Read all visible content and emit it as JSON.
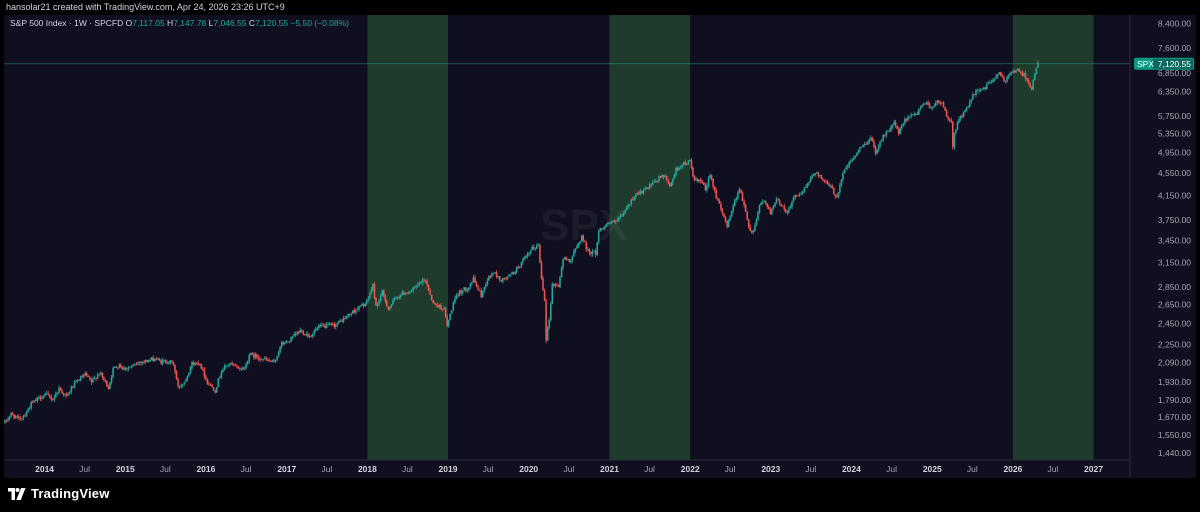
{
  "header": {
    "credit": "hansolar21 created with TradingView.com, Apr 24, 2026 23:26 UTC+9"
  },
  "footer": {
    "brand": "TradingView",
    "logo_icon": "tradingview-logo-icon"
  },
  "chart_data": {
    "type": "candlestick",
    "legend": {
      "symbol": "S&P 500 Index · 1W · SPCFD",
      "o_label": "O",
      "o": "7,117.05",
      "h_label": "H",
      "h": "7,147.78",
      "l_label": "L",
      "l": "7,046.55",
      "c_label": "C",
      "c": "7,120.55",
      "change": "−5.50 (−0.08%)"
    },
    "last_price": {
      "ticker": "SPX",
      "value": "7,120.55",
      "numeric": 7120.55
    },
    "watermark": "SPX",
    "y_scale": "log",
    "y_range": [
      1400,
      8700
    ],
    "y_ticks": [
      8400,
      7600,
      6850,
      6350,
      5750,
      5350,
      4950,
      4550,
      4150,
      3750,
      3450,
      3150,
      2850,
      2650,
      2450,
      2250,
      2090,
      1930,
      1790,
      1670,
      1550,
      1440
    ],
    "y_tick_labels": [
      "8,400.00",
      "7,600.00",
      "6,850.00",
      "6,350.00",
      "5,750.00",
      "5,350.00",
      "4,950.00",
      "4,550.00",
      "4,150.00",
      "3,750.00",
      "3,450.00",
      "3,150.00",
      "2,850.00",
      "2,650.00",
      "2,450.00",
      "2,250.00",
      "2,090.00",
      "1,930.00",
      "1,790.00",
      "1,670.00",
      "1,550.00",
      "1,440.00"
    ],
    "x_range": [
      "2013-07-01",
      "2027-06-15"
    ],
    "x_ticks": [
      {
        "date": "2014-01-01",
        "label": "2014",
        "major": true
      },
      {
        "date": "2014-07-01",
        "label": "Jul",
        "major": false
      },
      {
        "date": "2015-01-01",
        "label": "2015",
        "major": true
      },
      {
        "date": "2015-07-01",
        "label": "Jul",
        "major": false
      },
      {
        "date": "2016-01-01",
        "label": "2016",
        "major": true
      },
      {
        "date": "2016-07-01",
        "label": "Jul",
        "major": false
      },
      {
        "date": "2017-01-01",
        "label": "2017",
        "major": true
      },
      {
        "date": "2017-07-01",
        "label": "Jul",
        "major": false
      },
      {
        "date": "2018-01-01",
        "label": "2018",
        "major": true
      },
      {
        "date": "2018-07-01",
        "label": "Jul",
        "major": false
      },
      {
        "date": "2019-01-01",
        "label": "2019",
        "major": true
      },
      {
        "date": "2019-07-01",
        "label": "Jul",
        "major": false
      },
      {
        "date": "2020-01-01",
        "label": "2020",
        "major": true
      },
      {
        "date": "2020-07-01",
        "label": "Jul",
        "major": false
      },
      {
        "date": "2021-01-01",
        "label": "2021",
        "major": true
      },
      {
        "date": "2021-07-01",
        "label": "Jul",
        "major": false
      },
      {
        "date": "2022-01-01",
        "label": "2022",
        "major": true
      },
      {
        "date": "2022-07-01",
        "label": "Jul",
        "major": false
      },
      {
        "date": "2023-01-01",
        "label": "2023",
        "major": true
      },
      {
        "date": "2023-07-01",
        "label": "Jul",
        "major": false
      },
      {
        "date": "2024-01-01",
        "label": "2024",
        "major": true
      },
      {
        "date": "2024-07-01",
        "label": "Jul",
        "major": false
      },
      {
        "date": "2025-01-01",
        "label": "2025",
        "major": true
      },
      {
        "date": "2025-07-01",
        "label": "Jul",
        "major": false
      },
      {
        "date": "2026-01-01",
        "label": "2026",
        "major": true
      },
      {
        "date": "2026-07-01",
        "label": "Jul",
        "major": false
      },
      {
        "date": "2027-01-01",
        "label": "2027",
        "major": true
      }
    ],
    "highlight_ranges": [
      {
        "start": "2018-01-01",
        "end": "2019-01-01"
      },
      {
        "start": "2021-01-01",
        "end": "2022-01-01"
      },
      {
        "start": "2026-01-01",
        "end": "2027-01-01"
      }
    ],
    "price_path": [
      [
        "2013-07-05",
        1632
      ],
      [
        "2013-08-02",
        1690
      ],
      [
        "2013-09-06",
        1655
      ],
      [
        "2013-10-04",
        1690
      ],
      [
        "2013-11-01",
        1760
      ],
      [
        "2013-12-06",
        1805
      ],
      [
        "2014-01-03",
        1832
      ],
      [
        "2014-02-07",
        1797
      ],
      [
        "2014-03-07",
        1878
      ],
      [
        "2014-04-11",
        1815
      ],
      [
        "2014-05-02",
        1882
      ],
      [
        "2014-06-06",
        1950
      ],
      [
        "2014-07-04",
        1985
      ],
      [
        "2014-08-01",
        1925
      ],
      [
        "2014-09-05",
        2005
      ],
      [
        "2014-10-17",
        1885
      ],
      [
        "2014-11-07",
        2032
      ],
      [
        "2014-12-05",
        2075
      ],
      [
        "2014-12-19",
        2040
      ],
      [
        "2015-01-09",
        2045
      ],
      [
        "2015-02-06",
        2055
      ],
      [
        "2015-03-06",
        2095
      ],
      [
        "2015-04-10",
        2102
      ],
      [
        "2015-05-15",
        2122
      ],
      [
        "2015-06-12",
        2095
      ],
      [
        "2015-07-10",
        2100
      ],
      [
        "2015-08-07",
        2078
      ],
      [
        "2015-08-28",
        1885
      ],
      [
        "2015-09-25",
        1930
      ],
      [
        "2015-10-30",
        2080
      ],
      [
        "2015-12-04",
        2085
      ],
      [
        "2016-01-08",
        1925
      ],
      [
        "2016-02-12",
        1865
      ],
      [
        "2016-03-11",
        2020
      ],
      [
        "2016-04-15",
        2080
      ],
      [
        "2016-05-13",
        2050
      ],
      [
        "2016-06-24",
        2035
      ],
      [
        "2016-07-15",
        2160
      ],
      [
        "2016-09-09",
        2125
      ],
      [
        "2016-11-04",
        2085
      ],
      [
        "2016-12-09",
        2255
      ],
      [
        "2017-01-06",
        2275
      ],
      [
        "2017-03-03",
        2382
      ],
      [
        "2017-04-14",
        2330
      ],
      [
        "2017-05-26",
        2415
      ],
      [
        "2017-06-30",
        2425
      ],
      [
        "2017-08-11",
        2440
      ],
      [
        "2017-09-29",
        2520
      ],
      [
        "2017-11-03",
        2585
      ],
      [
        "2017-12-29",
        2673
      ],
      [
        "2018-01-26",
        2872
      ],
      [
        "2018-02-09",
        2620
      ],
      [
        "2018-03-09",
        2785
      ],
      [
        "2018-04-06",
        2605
      ],
      [
        "2018-05-11",
        2728
      ],
      [
        "2018-06-15",
        2780
      ],
      [
        "2018-07-20",
        2802
      ],
      [
        "2018-08-31",
        2902
      ],
      [
        "2018-09-21",
        2930
      ],
      [
        "2018-10-26",
        2660
      ],
      [
        "2018-11-23",
        2630
      ],
      [
        "2018-12-14",
        2600
      ],
      [
        "2018-12-28",
        2425
      ],
      [
        "2019-01-25",
        2665
      ],
      [
        "2019-02-22",
        2792
      ],
      [
        "2019-03-29",
        2835
      ],
      [
        "2019-04-26",
        2940
      ],
      [
        "2019-05-31",
        2752
      ],
      [
        "2019-06-28",
        2940
      ],
      [
        "2019-07-26",
        3025
      ],
      [
        "2019-08-30",
        2925
      ],
      [
        "2019-09-27",
        2962
      ],
      [
        "2019-10-25",
        3022
      ],
      [
        "2019-11-29",
        3142
      ],
      [
        "2019-12-27",
        3240
      ],
      [
        "2020-01-17",
        3330
      ],
      [
        "2020-02-14",
        3380
      ],
      [
        "2020-02-28",
        2955
      ],
      [
        "2020-03-13",
        2712
      ],
      [
        "2020-03-20",
        2305
      ],
      [
        "2020-04-03",
        2490
      ],
      [
        "2020-04-17",
        2875
      ],
      [
        "2020-05-15",
        2864
      ],
      [
        "2020-06-05",
        3195
      ],
      [
        "2020-07-10",
        3185
      ],
      [
        "2020-08-28",
        3510
      ],
      [
        "2020-09-25",
        3298
      ],
      [
        "2020-10-30",
        3270
      ],
      [
        "2020-11-13",
        3585
      ],
      [
        "2020-12-24",
        3703
      ],
      [
        "2021-01-29",
        3715
      ],
      [
        "2021-02-26",
        3812
      ],
      [
        "2021-03-26",
        3975
      ],
      [
        "2021-04-30",
        4181
      ],
      [
        "2021-05-28",
        4205
      ],
      [
        "2021-06-25",
        4280
      ],
      [
        "2021-07-30",
        4395
      ],
      [
        "2021-08-27",
        4510
      ],
      [
        "2021-09-10",
        4460
      ],
      [
        "2021-09-30",
        4310
      ],
      [
        "2021-10-29",
        4605
      ],
      [
        "2021-11-19",
        4695
      ],
      [
        "2021-12-31",
        4766
      ],
      [
        "2022-01-21",
        4400
      ],
      [
        "2022-02-25",
        4385
      ],
      [
        "2022-03-11",
        4205
      ],
      [
        "2022-04-01",
        4545
      ],
      [
        "2022-04-29",
        4132
      ],
      [
        "2022-05-20",
        3902
      ],
      [
        "2022-06-17",
        3675
      ],
      [
        "2022-07-29",
        4130
      ],
      [
        "2022-08-12",
        4280
      ],
      [
        "2022-09-30",
        3585
      ],
      [
        "2022-10-14",
        3580
      ],
      [
        "2022-11-11",
        3992
      ],
      [
        "2022-12-02",
        4072
      ],
      [
        "2022-12-30",
        3840
      ],
      [
        "2023-01-27",
        4070
      ],
      [
        "2023-02-24",
        3970
      ],
      [
        "2023-03-10",
        3862
      ],
      [
        "2023-04-28",
        4170
      ],
      [
        "2023-05-26",
        4205
      ],
      [
        "2023-06-30",
        4450
      ],
      [
        "2023-07-28",
        4582
      ],
      [
        "2023-08-25",
        4405
      ],
      [
        "2023-09-29",
        4288
      ],
      [
        "2023-10-27",
        4117
      ],
      [
        "2023-11-24",
        4559
      ],
      [
        "2023-12-29",
        4770
      ],
      [
        "2024-02-09",
        5026
      ],
      [
        "2024-03-28",
        5254
      ],
      [
        "2024-04-19",
        4967
      ],
      [
        "2024-05-24",
        5305
      ],
      [
        "2024-06-28",
        5460
      ],
      [
        "2024-07-12",
        5615
      ],
      [
        "2024-08-02",
        5346
      ],
      [
        "2024-08-30",
        5648
      ],
      [
        "2024-09-27",
        5738
      ],
      [
        "2024-10-25",
        5808
      ],
      [
        "2024-11-08",
        5995
      ],
      [
        "2024-12-06",
        6090
      ],
      [
        "2024-12-20",
        5930
      ],
      [
        "2025-01-24",
        6101
      ],
      [
        "2025-02-21",
        6013
      ],
      [
        "2025-03-14",
        5638
      ],
      [
        "2025-03-28",
        5580
      ],
      [
        "2025-04-04",
        5074
      ],
      [
        "2025-04-11",
        5363
      ],
      [
        "2025-05-02",
        5686
      ],
      [
        "2025-05-23",
        5802
      ],
      [
        "2025-06-27",
        6173
      ],
      [
        "2025-07-25",
        6389
      ],
      [
        "2025-08-29",
        6460
      ],
      [
        "2025-09-26",
        6643
      ],
      [
        "2025-10-31",
        6840
      ],
      [
        "2025-11-21",
        6602
      ],
      [
        "2025-12-26",
        6930
      ],
      [
        "2026-01-23",
        6915
      ],
      [
        "2026-02-13",
        6836
      ],
      [
        "2026-03-06",
        6720
      ],
      [
        "2026-03-27",
        6385
      ],
      [
        "2026-04-10",
        6830
      ],
      [
        "2026-04-24",
        7120
      ]
    ]
  }
}
